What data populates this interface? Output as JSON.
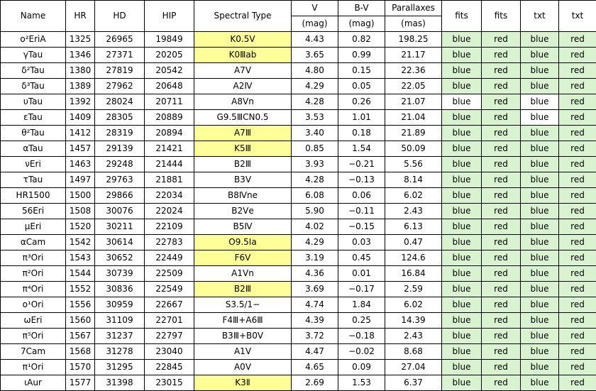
{
  "columns": [
    "Name",
    "HR",
    "HD",
    "HIP",
    "Spectral Type",
    "V",
    "B-V",
    "Parallaxes",
    "fits",
    "fits",
    "txt",
    "txt"
  ],
  "units": [
    "",
    "",
    "",
    "",
    "",
    "(mag)",
    "(mag)",
    "(mas)",
    "",
    "",
    "",
    ""
  ],
  "colors": {
    "yellow": "#ffff99",
    "green": "#d9f2d0"
  },
  "rows": [
    {
      "name": "ο²EriA",
      "hr": "1325",
      "hd": "26965",
      "hip": "19849",
      "sp": "K0.5Ⅴ",
      "sp_hl": true,
      "v": "4.43",
      "bv": "0.82",
      "plx": "198.25",
      "fits1": "blue",
      "fits2": "red",
      "txt1": "blue",
      "txt2": "red",
      "fits1_hl": true,
      "fits2_hl": true,
      "txt1_hl": true,
      "txt2_hl": true
    },
    {
      "name": "γTau",
      "hr": "1346",
      "hd": "27371",
      "hip": "20205",
      "sp": "K0Ⅲab",
      "sp_hl": true,
      "v": "3.65",
      "bv": "0.99",
      "plx": "21.17",
      "fits1": "blue",
      "fits2": "red",
      "txt1": "blue",
      "txt2": "red",
      "fits1_hl": true,
      "fits2_hl": true,
      "txt1_hl": true,
      "txt2_hl": true
    },
    {
      "name": "δ²Tau",
      "hr": "1380",
      "hd": "27819",
      "hip": "20542",
      "sp": "A7Ⅴ",
      "sp_hl": false,
      "v": "4.80",
      "bv": "0.15",
      "plx": "22.36",
      "fits1": "blue",
      "fits2": "red",
      "txt1": "blue",
      "txt2": "red",
      "fits1_hl": true,
      "fits2_hl": true,
      "txt1_hl": true,
      "txt2_hl": true
    },
    {
      "name": "δ³Tau",
      "hr": "1389",
      "hd": "27962",
      "hip": "20648",
      "sp": "A2Ⅳ",
      "sp_hl": false,
      "v": "4.29",
      "bv": "0.05",
      "plx": "22.05",
      "fits1": "blue",
      "fits2": "red",
      "txt1": "blue",
      "txt2": "red",
      "fits1_hl": true,
      "fits2_hl": true,
      "txt1_hl": true,
      "txt2_hl": true
    },
    {
      "name": "υTau",
      "hr": "1392",
      "hd": "28024",
      "hip": "20711",
      "sp": "A8Ⅴn",
      "sp_hl": false,
      "v": "4.28",
      "bv": "0.26",
      "plx": "21.07",
      "fits1": "blue",
      "fits2": "red",
      "txt1": "blue",
      "txt2": "red",
      "fits1_hl": false,
      "fits2_hl": true,
      "txt1_hl": false,
      "txt2_hl": true
    },
    {
      "name": "εTau",
      "hr": "1409",
      "hd": "28305",
      "hip": "20889",
      "sp": "G9.5ⅢCN0.5",
      "sp_hl": false,
      "v": "3.53",
      "bv": "1.01",
      "plx": "21.04",
      "fits1": "blue",
      "fits2": "red",
      "txt1": "blue",
      "txt2": "red",
      "fits1_hl": true,
      "fits2_hl": true,
      "txt1_hl": false,
      "txt2_hl": true
    },
    {
      "name": "θ²Tau",
      "hr": "1412",
      "hd": "28319",
      "hip": "20894",
      "sp": "A7Ⅲ",
      "sp_hl": true,
      "v": "3.40",
      "bv": "0.18",
      "plx": "21.89",
      "fits1": "blue",
      "fits2": "red",
      "txt1": "blue",
      "txt2": "red",
      "fits1_hl": true,
      "fits2_hl": true,
      "txt1_hl": true,
      "txt2_hl": true
    },
    {
      "name": "αTau",
      "hr": "1457",
      "hd": "29139",
      "hip": "21421",
      "sp": "K5Ⅲ",
      "sp_hl": true,
      "v": "0.85",
      "bv": "1.54",
      "plx": "50.09",
      "fits1": "blue",
      "fits2": "red",
      "txt1": "blue",
      "txt2": "red",
      "fits1_hl": true,
      "fits2_hl": true,
      "txt1_hl": true,
      "txt2_hl": true
    },
    {
      "name": "νEri",
      "hr": "1463",
      "hd": "29248",
      "hip": "21444",
      "sp": "B2Ⅲ",
      "sp_hl": false,
      "v": "3.93",
      "bv": "−0.21",
      "plx": "5.56",
      "fits1": "blue",
      "fits2": "red",
      "txt1": "blue",
      "txt2": "red",
      "fits1_hl": true,
      "fits2_hl": true,
      "txt1_hl": true,
      "txt2_hl": true
    },
    {
      "name": "τTau",
      "hr": "1497",
      "hd": "29763",
      "hip": "21881",
      "sp": "B3Ⅴ",
      "sp_hl": false,
      "v": "4.28",
      "bv": "−0.13",
      "plx": "8.14",
      "fits1": "blue",
      "fits2": "red",
      "txt1": "blue",
      "txt2": "red",
      "fits1_hl": true,
      "fits2_hl": true,
      "txt1_hl": true,
      "txt2_hl": true
    },
    {
      "name": "HR1500",
      "hr": "1500",
      "hd": "29866",
      "hip": "22034",
      "sp": "B8Ⅳne",
      "sp_hl": false,
      "v": "6.08",
      "bv": "0.06",
      "plx": "6.02",
      "fits1": "blue",
      "fits2": "red",
      "txt1": "blue",
      "txt2": "red",
      "fits1_hl": true,
      "fits2_hl": true,
      "txt1_hl": true,
      "txt2_hl": true
    },
    {
      "name": "56Eri",
      "hr": "1508",
      "hd": "30076",
      "hip": "22024",
      "sp": "B2Ⅴe",
      "sp_hl": false,
      "v": "5.90",
      "bv": "−0.11",
      "plx": "2.43",
      "fits1": "blue",
      "fits2": "red",
      "txt1": "blue",
      "txt2": "red",
      "fits1_hl": true,
      "fits2_hl": true,
      "txt1_hl": true,
      "txt2_hl": true
    },
    {
      "name": "μEri",
      "hr": "1520",
      "hd": "30211",
      "hip": "22109",
      "sp": "B5Ⅳ",
      "sp_hl": false,
      "v": "4.02",
      "bv": "−0.15",
      "plx": "6.13",
      "fits1": "blue",
      "fits2": "red",
      "txt1": "blue",
      "txt2": "red",
      "fits1_hl": true,
      "fits2_hl": true,
      "txt1_hl": true,
      "txt2_hl": true
    },
    {
      "name": "αCam",
      "hr": "1542",
      "hd": "30614",
      "hip": "22783",
      "sp": "O9.5Ⅰa",
      "sp_hl": true,
      "v": "4.29",
      "bv": "0.03",
      "plx": "0.47",
      "fits1": "blue",
      "fits2": "red",
      "txt1": "blue",
      "txt2": "red",
      "fits1_hl": true,
      "fits2_hl": true,
      "txt1_hl": true,
      "txt2_hl": true
    },
    {
      "name": "π³Ori",
      "hr": "1543",
      "hd": "30652",
      "hip": "22449",
      "sp": "F6Ⅴ",
      "sp_hl": true,
      "v": "3.19",
      "bv": "0.45",
      "plx": "124.6",
      "fits1": "blue",
      "fits2": "red",
      "txt1": "blue",
      "txt2": "red",
      "fits1_hl": true,
      "fits2_hl": true,
      "txt1_hl": true,
      "txt2_hl": true
    },
    {
      "name": "π²Ori",
      "hr": "1544",
      "hd": "30739",
      "hip": "22509",
      "sp": "A1Ⅴn",
      "sp_hl": false,
      "v": "4.36",
      "bv": "0.01",
      "plx": "16.84",
      "fits1": "blue",
      "fits2": "red",
      "txt1": "blue",
      "txt2": "red",
      "fits1_hl": true,
      "fits2_hl": true,
      "txt1_hl": true,
      "txt2_hl": true
    },
    {
      "name": "π⁴Ori",
      "hr": "1552",
      "hd": "30836",
      "hip": "22549",
      "sp": "B2Ⅲ",
      "sp_hl": true,
      "v": "3.69",
      "bv": "−0.17",
      "plx": "2.59",
      "fits1": "blue",
      "fits2": "red",
      "txt1": "blue",
      "txt2": "red",
      "fits1_hl": true,
      "fits2_hl": true,
      "txt1_hl": true,
      "txt2_hl": true
    },
    {
      "name": "ο¹Ori",
      "hr": "1556",
      "hd": "30959",
      "hip": "22667",
      "sp": "S3.5/1−",
      "sp_hl": false,
      "v": "4.74",
      "bv": "1.84",
      "plx": "6.02",
      "fits1": "blue",
      "fits2": "red",
      "txt1": "blue",
      "txt2": "red",
      "fits1_hl": true,
      "fits2_hl": true,
      "txt1_hl": true,
      "txt2_hl": true
    },
    {
      "name": "ωEri",
      "hr": "1560",
      "hd": "31109",
      "hip": "22701",
      "sp": "F4Ⅲ+A6Ⅲ",
      "sp_hl": false,
      "v": "4.39",
      "bv": "0.25",
      "plx": "14.39",
      "fits1": "blue",
      "fits2": "red",
      "txt1": "blue",
      "txt2": "red",
      "fits1_hl": true,
      "fits2_hl": true,
      "txt1_hl": true,
      "txt2_hl": true
    },
    {
      "name": "π⁵Ori",
      "hr": "1567",
      "hd": "31237",
      "hip": "22797",
      "sp": "B3Ⅲ+B0Ⅴ",
      "sp_hl": false,
      "v": "3.72",
      "bv": "−0.18",
      "plx": "2.43",
      "fits1": "blue",
      "fits2": "red",
      "txt1": "blue",
      "txt2": "red",
      "fits1_hl": true,
      "fits2_hl": true,
      "txt1_hl": true,
      "txt2_hl": true
    },
    {
      "name": "7Cam",
      "hr": "1568",
      "hd": "31278",
      "hip": "23040",
      "sp": "A1Ⅴ",
      "sp_hl": false,
      "v": "4.47",
      "bv": "−0.02",
      "plx": "8.68",
      "fits1": "blue",
      "fits2": "red",
      "txt1": "blue",
      "txt2": "red",
      "fits1_hl": true,
      "fits2_hl": true,
      "txt1_hl": true,
      "txt2_hl": true
    },
    {
      "name": "π¹Ori",
      "hr": "1570",
      "hd": "31295",
      "hip": "22845",
      "sp": "A0Ⅴ",
      "sp_hl": false,
      "v": "4.65",
      "bv": "0.09",
      "plx": "27.04",
      "fits1": "blue",
      "fits2": "red",
      "txt1": "blue",
      "txt2": "red",
      "fits1_hl": true,
      "fits2_hl": true,
      "txt1_hl": true,
      "txt2_hl": true
    },
    {
      "name": "ιAur",
      "hr": "1577",
      "hd": "31398",
      "hip": "23015",
      "sp": "K3Ⅱ",
      "sp_hl": true,
      "v": "2.69",
      "bv": "1.53",
      "plx": "6.37",
      "fits1": "blue",
      "fits2": "red",
      "txt1": "blue",
      "txt2": "red",
      "fits1_hl": true,
      "fits2_hl": true,
      "txt1_hl": true,
      "txt2_hl": true
    }
  ]
}
